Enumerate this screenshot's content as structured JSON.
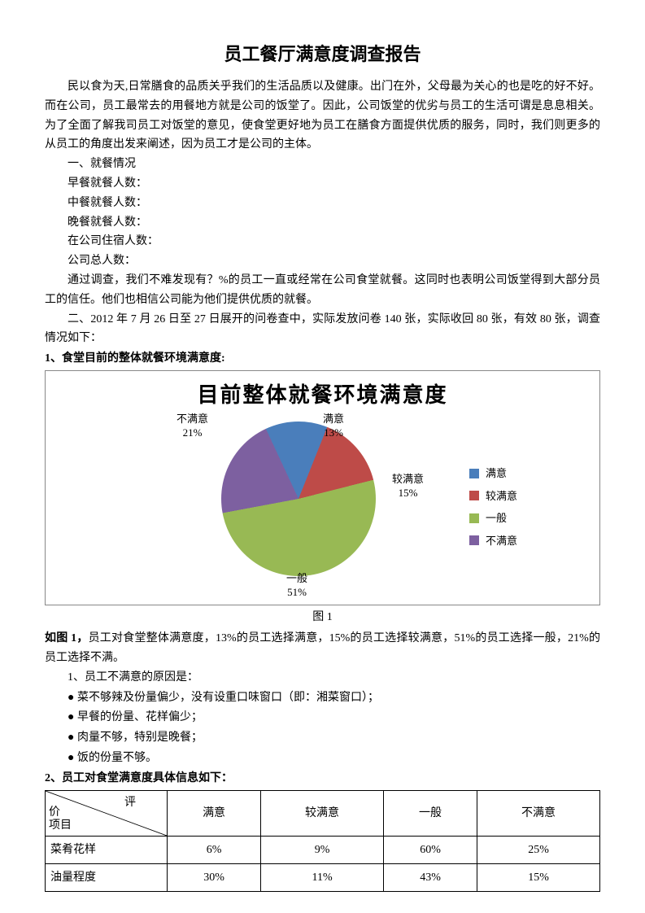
{
  "title": "员工餐厅满意度调查报告",
  "p1": "民以食为天,日常膳食的品质关乎我们的生活品质以及健康。出门在外，父母最为关心的也是吃的好不好。而在公司，员工最常去的用餐地方就是公司的饭堂了。因此，公司饭堂的优劣与员工的生活可谓是息息相关。为了全面了解我司员工对饭堂的意见，使食堂更好地为员工在膳食方面提供优质的服务，同时，我们则更多的从员工的角度出发来阐述，因为员工才是公司的主体。",
  "section1": "一、就餐情况",
  "lines": {
    "l1": "早餐就餐人数：",
    "l2": "中餐就餐人数：",
    "l3": "晚餐就餐人数：",
    "l4": "在公司住宿人数：",
    "l5": "公司总人数："
  },
  "p2": "通过调查，我们不难发现有？%的员工一直或经常在公司食堂就餐。这同时也表明公司饭堂得到大部分员工的信任。他们也相信公司能为他们提供优质的就餐。",
  "p3": "二、2012 年 7 月 26 日至 27 日展开的问卷查中，实际发放问卷 140 张，实际收回 80 张，有效 80 张，调查情况如下：",
  "h1": "1、食堂目前的整体就餐环境满意度:",
  "chart": {
    "title": "目前整体就餐环境满意度",
    "type": "pie",
    "slices": [
      {
        "label": "满意",
        "pct": 13,
        "color": "#4a7ebb"
      },
      {
        "label": "较满意",
        "pct": 15,
        "color": "#be4b48"
      },
      {
        "label": "一般",
        "pct": 51,
        "color": "#98b954"
      },
      {
        "label": "不满意",
        "pct": 21,
        "color": "#7d60a0"
      }
    ],
    "labels": {
      "top": {
        "t1": "满意",
        "t2": "13%"
      },
      "right": {
        "t1": "较满意",
        "t2": "15%"
      },
      "bottom": {
        "t1": "一般",
        "t2": "51%"
      },
      "left": {
        "t1": "不满意",
        "t2": "21%"
      }
    },
    "legend": [
      "满意",
      "较满意",
      "一般",
      "不满意"
    ],
    "caption": "图 1"
  },
  "p4": "如图 1，员工对食堂整体满意度，13%的员工选择满意，15%的员工选择较满意，51%的员工选择一般，21%的员工选择不满。",
  "reasons_head": "1、员工不满意的原因是：",
  "reasons": {
    "r1": "菜不够辣及份量偏少，没有设重口味窗口（即：湘菜窗口）；",
    "r2": "早餐的份量、花样偏少；",
    "r3": "肉量不够，特别是晚餐；",
    "r4": "饭的份量不够。"
  },
  "h2": "2、员工对食堂满意度具体信息如下：",
  "table": {
    "diag": {
      "top": "评",
      "mid": "价",
      "bot": "项目"
    },
    "cols": [
      "满意",
      "较满意",
      "一般",
      "不满意"
    ],
    "rows": [
      {
        "name": "菜肴花样",
        "vals": [
          "6%",
          "9%",
          "60%",
          "25%"
        ]
      },
      {
        "name": "油量程度",
        "vals": [
          "30%",
          "11%",
          "43%",
          "15%"
        ]
      }
    ]
  }
}
